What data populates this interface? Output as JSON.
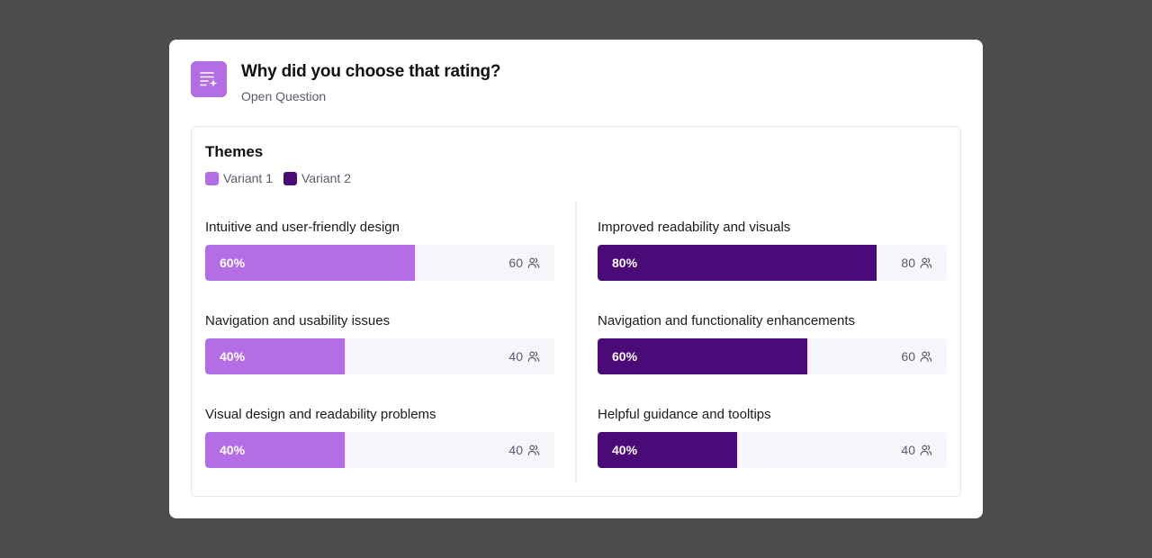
{
  "question": {
    "title": "Why did you choose that rating?",
    "subtitle": "Open Question",
    "icon": "sparkle-list-icon",
    "icon_color": "#b36ee6"
  },
  "themes": {
    "title": "Themes",
    "legend": [
      {
        "label": "Variant 1",
        "color": "#b36ee6"
      },
      {
        "label": "Variant 2",
        "color": "#4a0a78"
      }
    ],
    "variant1": [
      {
        "label": "Intuitive and user-friendly design",
        "percent_label": "60%",
        "fraction": 0.6,
        "count": "60"
      },
      {
        "label": "Navigation and usability issues",
        "percent_label": "40%",
        "fraction": 0.4,
        "count": "40"
      },
      {
        "label": "Visual design and readability problems",
        "percent_label": "40%",
        "fraction": 0.4,
        "count": "40"
      }
    ],
    "variant2": [
      {
        "label": "Improved readability and visuals",
        "percent_label": "80%",
        "fraction": 0.8,
        "count": "80"
      },
      {
        "label": "Navigation and functionality enhancements",
        "percent_label": "60%",
        "fraction": 0.6,
        "count": "60"
      },
      {
        "label": "Helpful guidance and tooltips",
        "percent_label": "40%",
        "fraction": 0.4,
        "count": "40"
      }
    ],
    "count_icon": "people-icon"
  }
}
